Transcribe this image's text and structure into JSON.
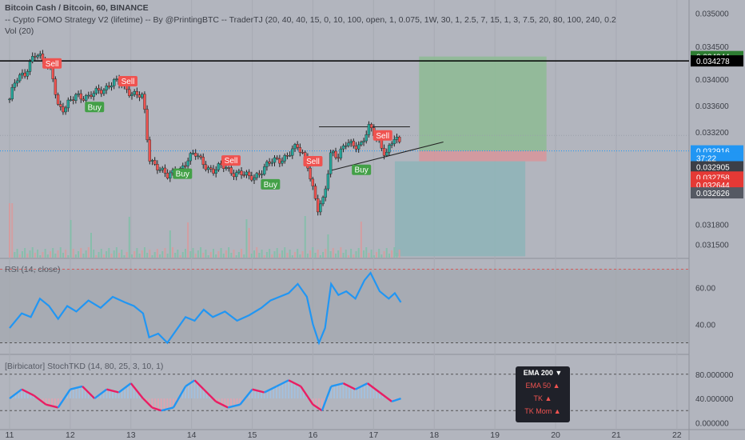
{
  "header": {
    "title": "Bitcoin Cash / Bitcoin, 60, BINANCE",
    "strategy": "-- Cypto FOMO Strategy V2 (lifetime) -- By @PrintingBTC -- TraderTJ (20, 40, 40, 15, 0, 10, 100, open, 1, 0.075, 1W, 30, 1, 2.5, 7, 15, 1, 3, 7.5, 20, 80, 100, 240, 0.2",
    "vol": "Vol (20)"
  },
  "colors": {
    "bg": "#b2b5be",
    "up": "#26a69a",
    "down": "#ef5350",
    "blue": "#2196f3"
  },
  "chart_data": [
    {
      "type": "candlestick",
      "ylim": [
        0.0313,
        0.0352
      ],
      "y_ticks": [
        0.035,
        0.0345,
        0.034,
        0.0336,
        0.0332,
        0.0318,
        0.0315
      ],
      "y_tick_labels": [
        "0.035000",
        "0.034500",
        "0.034000",
        "0.033600",
        "0.033200",
        "0.031800",
        "0.031500"
      ],
      "x_ticks": [
        11,
        12,
        13,
        14,
        15,
        16,
        17,
        18,
        19,
        20,
        21,
        22
      ],
      "x_tick_labels": [
        "11",
        "12",
        "13",
        "14",
        "15",
        "16",
        "17",
        "18",
        "19",
        "20",
        "21",
        "22"
      ],
      "price_path": [
        [
          11.0,
          0.0337
        ],
        [
          11.1,
          0.03395
        ],
        [
          11.25,
          0.0341
        ],
        [
          11.4,
          0.0344
        ],
        [
          11.55,
          0.03425
        ],
        [
          11.7,
          0.03415
        ],
        [
          11.8,
          0.0336
        ],
        [
          11.9,
          0.0335
        ],
        [
          12.1,
          0.0338
        ],
        [
          12.3,
          0.0337
        ],
        [
          12.5,
          0.03385
        ],
        [
          12.7,
          0.03395
        ],
        [
          12.85,
          0.0339
        ],
        [
          13.05,
          0.0338
        ],
        [
          13.2,
          0.0337
        ],
        [
          13.3,
          0.0328
        ],
        [
          13.45,
          0.0327
        ],
        [
          13.6,
          0.0325
        ],
        [
          13.75,
          0.0326
        ],
        [
          13.9,
          0.03275
        ],
        [
          14.05,
          0.03285
        ],
        [
          14.2,
          0.03275
        ],
        [
          14.35,
          0.0326
        ],
        [
          14.55,
          0.03268
        ],
        [
          14.75,
          0.03258
        ],
        [
          14.95,
          0.0325
        ],
        [
          15.15,
          0.03262
        ],
        [
          15.35,
          0.03275
        ],
        [
          15.55,
          0.03285
        ],
        [
          15.75,
          0.03295
        ],
        [
          15.9,
          0.0328
        ],
        [
          16.0,
          0.03235
        ],
        [
          16.08,
          0.032
        ],
        [
          16.18,
          0.03215
        ],
        [
          16.3,
          0.03295
        ],
        [
          16.42,
          0.03285
        ],
        [
          16.55,
          0.033
        ],
        [
          16.65,
          0.033
        ],
        [
          16.8,
          0.03305
        ],
        [
          16.92,
          0.03325
        ],
        [
          17.05,
          0.0331
        ],
        [
          17.2,
          0.0329
        ],
        [
          17.35,
          0.0331
        ],
        [
          17.45,
          0.03295
        ]
      ],
      "annotations": [
        {
          "text": "Sell",
          "x": 11.7,
          "y": 0.03424
        },
        {
          "text": "Buy",
          "x": 12.4,
          "y": 0.03358
        },
        {
          "text": "Sell",
          "x": 12.95,
          "y": 0.03397
        },
        {
          "text": "Buy",
          "x": 13.85,
          "y": 0.03257
        },
        {
          "text": "Sell",
          "x": 14.65,
          "y": 0.03277
        },
        {
          "text": "Buy",
          "x": 15.3,
          "y": 0.03241
        },
        {
          "text": "Sell",
          "x": 16.0,
          "y": 0.03276
        },
        {
          "text": "Buy",
          "x": 16.8,
          "y": 0.03263
        },
        {
          "text": "Sell",
          "x": 17.15,
          "y": 0.03315
        }
      ],
      "levels": {
        "black_line": 0.034278,
        "current": 0.032916,
        "tp_top": 0.034344,
        "entry": 0.032905,
        "stop": 0.032758,
        "target_low": 0.03132
      },
      "price_labels": [
        {
          "value": "0.034344",
          "y": 0.034344,
          "color": "#2e7d32"
        },
        {
          "value": "0.034278",
          "y": 0.034278,
          "color": "#000000"
        },
        {
          "value": "0.032916",
          "y": 0.032916,
          "color": "#2196f3"
        },
        {
          "value": "37:22",
          "y": 0.03281,
          "color": "#2196f3"
        },
        {
          "value": "0.032905",
          "y": 0.032675,
          "color": "#3c3f47"
        },
        {
          "value": "0.032758",
          "y": 0.03252,
          "color": "#e53935"
        },
        {
          "value": "0.032644",
          "y": 0.0324,
          "color": "#e53935"
        },
        {
          "value": "0.032626",
          "y": 0.03228,
          "color": "#555963"
        }
      ]
    },
    {
      "type": "line",
      "label": "RSI (14, close)",
      "ylim": [
        25,
        75
      ],
      "y_ticks": [
        60,
        40
      ],
      "y_tick_labels": [
        "60.00",
        "40.00"
      ],
      "band": [
        30,
        70
      ],
      "values": [
        [
          11.0,
          38
        ],
        [
          11.2,
          46
        ],
        [
          11.35,
          44
        ],
        [
          11.5,
          54
        ],
        [
          11.65,
          50
        ],
        [
          11.8,
          43
        ],
        [
          11.95,
          50
        ],
        [
          12.1,
          47
        ],
        [
          12.3,
          53
        ],
        [
          12.5,
          49
        ],
        [
          12.7,
          55
        ],
        [
          12.9,
          52
        ],
        [
          13.05,
          50
        ],
        [
          13.2,
          46
        ],
        [
          13.3,
          33
        ],
        [
          13.45,
          35
        ],
        [
          13.6,
          30
        ],
        [
          13.75,
          37
        ],
        [
          13.9,
          44
        ],
        [
          14.05,
          42
        ],
        [
          14.2,
          48
        ],
        [
          14.35,
          44
        ],
        [
          14.55,
          47
        ],
        [
          14.75,
          42
        ],
        [
          14.95,
          45
        ],
        [
          15.15,
          49
        ],
        [
          15.3,
          53
        ],
        [
          15.45,
          55
        ],
        [
          15.6,
          57
        ],
        [
          15.75,
          62
        ],
        [
          15.9,
          55
        ],
        [
          16.0,
          40
        ],
        [
          16.1,
          30
        ],
        [
          16.2,
          38
        ],
        [
          16.3,
          62
        ],
        [
          16.42,
          56
        ],
        [
          16.55,
          58
        ],
        [
          16.7,
          54
        ],
        [
          16.85,
          64
        ],
        [
          16.95,
          68
        ],
        [
          17.1,
          58
        ],
        [
          17.25,
          54
        ],
        [
          17.35,
          57
        ],
        [
          17.45,
          52
        ]
      ]
    },
    {
      "type": "line",
      "label": "[Birbicator] StochTKD (14, 80, 25, 3, 10, 1)",
      "ylim": [
        -10,
        110
      ],
      "y_ticks": [
        80,
        40,
        0
      ],
      "y_tick_labels": [
        "80.000000",
        "40.000000",
        "0.000000"
      ],
      "band": [
        20,
        80
      ],
      "series": [
        {
          "values": [
            [
              11.0,
              40
            ],
            [
              11.2,
              55
            ],
            [
              11.4,
              45
            ],
            [
              11.6,
              30
            ],
            [
              11.8,
              25
            ],
            [
              12.0,
              55
            ],
            [
              12.2,
              60
            ],
            [
              12.4,
              40
            ],
            [
              12.6,
              55
            ],
            [
              12.8,
              50
            ],
            [
              13.0,
              65
            ],
            [
              13.2,
              40
            ],
            [
              13.35,
              25
            ],
            [
              13.5,
              20
            ],
            [
              13.7,
              25
            ],
            [
              13.9,
              60
            ],
            [
              14.05,
              70
            ],
            [
              14.2,
              55
            ],
            [
              14.4,
              35
            ],
            [
              14.6,
              25
            ],
            [
              14.8,
              30
            ],
            [
              15.0,
              55
            ],
            [
              15.2,
              50
            ],
            [
              15.4,
              60
            ],
            [
              15.6,
              70
            ],
            [
              15.8,
              60
            ],
            [
              16.0,
              30
            ],
            [
              16.15,
              20
            ],
            [
              16.3,
              60
            ],
            [
              16.5,
              65
            ],
            [
              16.7,
              55
            ],
            [
              16.9,
              65
            ],
            [
              17.1,
              50
            ],
            [
              17.3,
              35
            ],
            [
              17.45,
              40
            ]
          ]
        }
      ]
    }
  ],
  "ema_panel": {
    "items": [
      {
        "label": "EMA 200",
        "marker": "▼",
        "color": "#ffffff"
      },
      {
        "label": "EMA 50",
        "marker": "▲",
        "color": "#ef5350"
      },
      {
        "label": "TK",
        "marker": "▲",
        "color": "#ef5350"
      },
      {
        "label": "TK Mom",
        "marker": "▲",
        "color": "#ef5350"
      }
    ]
  }
}
